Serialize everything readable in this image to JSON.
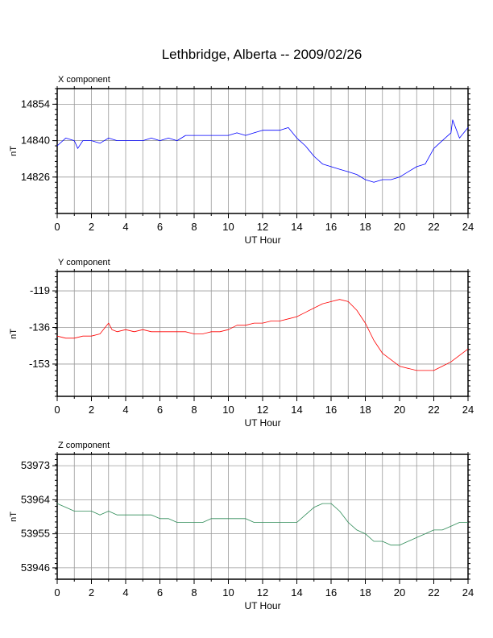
{
  "title": "Lethbridge, Alberta -- 2009/02/26",
  "chart_data": [
    {
      "type": "line",
      "panel_title": "X component",
      "xlabel": "UT Hour",
      "ylabel": "nT",
      "xlim": [
        0,
        24
      ],
      "ylim": [
        14812,
        14860
      ],
      "xticks": [
        "0",
        "2",
        "4",
        "6",
        "8",
        "10",
        "12",
        "14",
        "16",
        "18",
        "20",
        "22",
        "24"
      ],
      "yticks": [
        "14854",
        "14840",
        "14826"
      ],
      "grid": true,
      "color": "#0000ff",
      "x": [
        0,
        0.5,
        1,
        1.2,
        1.5,
        2,
        2.5,
        3,
        3.5,
        4,
        4.5,
        5,
        5.5,
        6,
        6.5,
        7,
        7.5,
        8,
        8.5,
        9,
        9.5,
        10,
        10.5,
        11,
        11.5,
        12,
        12.5,
        13,
        13.5,
        14,
        14.5,
        15,
        15.5,
        16,
        16.5,
        17,
        17.5,
        18,
        18.5,
        19,
        19.5,
        20,
        20.5,
        21,
        21.5,
        22,
        22.5,
        23,
        23.1,
        23.5,
        24
      ],
      "y": [
        14838,
        14841,
        14840,
        14837,
        14840,
        14840,
        14839,
        14841,
        14840,
        14840,
        14840,
        14840,
        14841,
        14840,
        14841,
        14840,
        14842,
        14842,
        14842,
        14842,
        14842,
        14842,
        14843,
        14842,
        14843,
        14844,
        14844,
        14844,
        14845,
        14841,
        14838,
        14834,
        14831,
        14830,
        14829,
        14828,
        14827,
        14825,
        14824,
        14825,
        14825,
        14826,
        14828,
        14830,
        14831,
        14837,
        14840,
        14843,
        14848,
        14841,
        14845
      ]
    },
    {
      "type": "line",
      "panel_title": "Y component",
      "xlabel": "UT Hour",
      "ylabel": "nT",
      "xlim": [
        0,
        24
      ],
      "ylim": [
        -168,
        -110
      ],
      "xticks": [
        "0",
        "2",
        "4",
        "6",
        "8",
        "10",
        "12",
        "14",
        "16",
        "18",
        "20",
        "22",
        "24"
      ],
      "yticks": [
        "-119",
        "-136",
        "-153"
      ],
      "grid": true,
      "color": "#ff0000",
      "x": [
        0,
        0.5,
        1,
        1.5,
        2,
        2.5,
        3,
        3.2,
        3.5,
        4,
        4.5,
        5,
        5.5,
        6,
        6.5,
        7,
        7.5,
        8,
        8.5,
        9,
        9.5,
        10,
        10.5,
        11,
        11.5,
        12,
        12.5,
        13,
        13.5,
        14,
        14.5,
        15,
        15.5,
        16,
        16.5,
        17,
        17.5,
        18,
        18.5,
        19,
        19.5,
        20,
        20.5,
        21,
        21.5,
        22,
        22.5,
        23,
        23.5,
        24
      ],
      "y": [
        -140,
        -141,
        -141,
        -140,
        -140,
        -139,
        -134,
        -137,
        -138,
        -137,
        -138,
        -137,
        -138,
        -138,
        -138,
        -138,
        -138,
        -139,
        -139,
        -138,
        -138,
        -137,
        -135,
        -135,
        -134,
        -134,
        -133,
        -133,
        -132,
        -131,
        -129,
        -127,
        -125,
        -124,
        -123,
        -124,
        -128,
        -134,
        -142,
        -148,
        -151,
        -154,
        -155,
        -156,
        -156,
        -156,
        -154,
        -152,
        -149,
        -146
      ]
    },
    {
      "type": "line",
      "panel_title": "Z component",
      "xlabel": "UT Hour",
      "ylabel": "nT",
      "xlim": [
        0,
        24
      ],
      "ylim": [
        53943,
        53976
      ],
      "xticks": [
        "0",
        "2",
        "4",
        "6",
        "8",
        "10",
        "12",
        "14",
        "16",
        "18",
        "20",
        "22",
        "24"
      ],
      "yticks": [
        "53973",
        "53964",
        "53955",
        "53946"
      ],
      "grid": true,
      "color": "#2e8b57",
      "x": [
        0,
        0.5,
        1,
        1.5,
        2,
        2.5,
        3,
        3.5,
        4,
        4.5,
        5,
        5.5,
        6,
        6.5,
        7,
        7.5,
        8,
        8.5,
        9,
        9.5,
        10,
        10.5,
        11,
        11.5,
        12,
        12.5,
        13,
        13.5,
        14,
        14.5,
        15,
        15.5,
        16,
        16.5,
        17,
        17.5,
        18,
        18.5,
        19,
        19.5,
        20,
        20.5,
        21,
        21.5,
        22,
        22.5,
        23,
        23.5,
        24
      ],
      "y": [
        53963,
        53962,
        53961,
        53961,
        53961,
        53960,
        53961,
        53960,
        53960,
        53960,
        53960,
        53960,
        53959,
        53959,
        53958,
        53958,
        53958,
        53958,
        53959,
        53959,
        53959,
        53959,
        53959,
        53958,
        53958,
        53958,
        53958,
        53958,
        53958,
        53960,
        53962,
        53963,
        53963,
        53961,
        53958,
        53956,
        53955,
        53953,
        53953,
        53952,
        53952,
        53953,
        53954,
        53955,
        53956,
        53956,
        53957,
        53958,
        53958
      ]
    }
  ]
}
